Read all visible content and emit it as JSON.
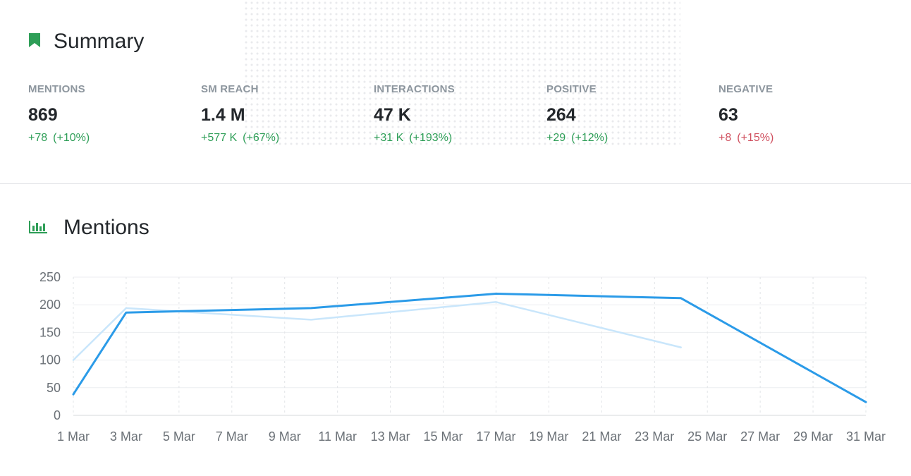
{
  "summary": {
    "title": "Summary",
    "icon": "bookmark-icon",
    "kpis": [
      {
        "label": "MENTIONS",
        "value": "869",
        "delta": "+78",
        "pct": "(+10%)",
        "trend": "positive"
      },
      {
        "label": "SM REACH",
        "value": "1.4 M",
        "delta": "+577 K",
        "pct": "(+67%)",
        "trend": "positive"
      },
      {
        "label": "INTERACTIONS",
        "value": "47 K",
        "delta": "+31 K",
        "pct": "(+193%)",
        "trend": "positive"
      },
      {
        "label": "POSITIVE",
        "value": "264",
        "delta": "+29",
        "pct": "(+12%)",
        "trend": "positive"
      },
      {
        "label": "NEGATIVE",
        "value": "63",
        "delta": "+8",
        "pct": "(+15%)",
        "trend": "negative"
      }
    ]
  },
  "mentions": {
    "title": "Mentions",
    "icon": "bar-chart-icon"
  },
  "colors": {
    "accent_green": "#2e9e57",
    "negative_red": "#d0505f",
    "series_current": "#2b9be8",
    "series_previous": "#c9e6fb"
  },
  "chart_data": {
    "type": "line",
    "x_labels": [
      "1 Mar",
      "3 Mar",
      "5 Mar",
      "7 Mar",
      "9 Mar",
      "11 Mar",
      "13 Mar",
      "15 Mar",
      "17 Mar",
      "19 Mar",
      "21 Mar",
      "23 Mar",
      "25 Mar",
      "27 Mar",
      "29 Mar",
      "31 Mar"
    ],
    "yticks": [
      0,
      50,
      100,
      150,
      200,
      250
    ],
    "ylim": [
      0,
      250
    ],
    "xlim": [
      1,
      31
    ],
    "grid": true,
    "series": [
      {
        "role": "current",
        "x": [
          1,
          3,
          10,
          17,
          24,
          31
        ],
        "values": [
          38,
          186,
          194,
          220,
          212,
          24
        ]
      },
      {
        "role": "previous",
        "x": [
          1,
          3,
          10,
          17,
          24
        ],
        "values": [
          100,
          194,
          173,
          205,
          123
        ]
      }
    ]
  }
}
